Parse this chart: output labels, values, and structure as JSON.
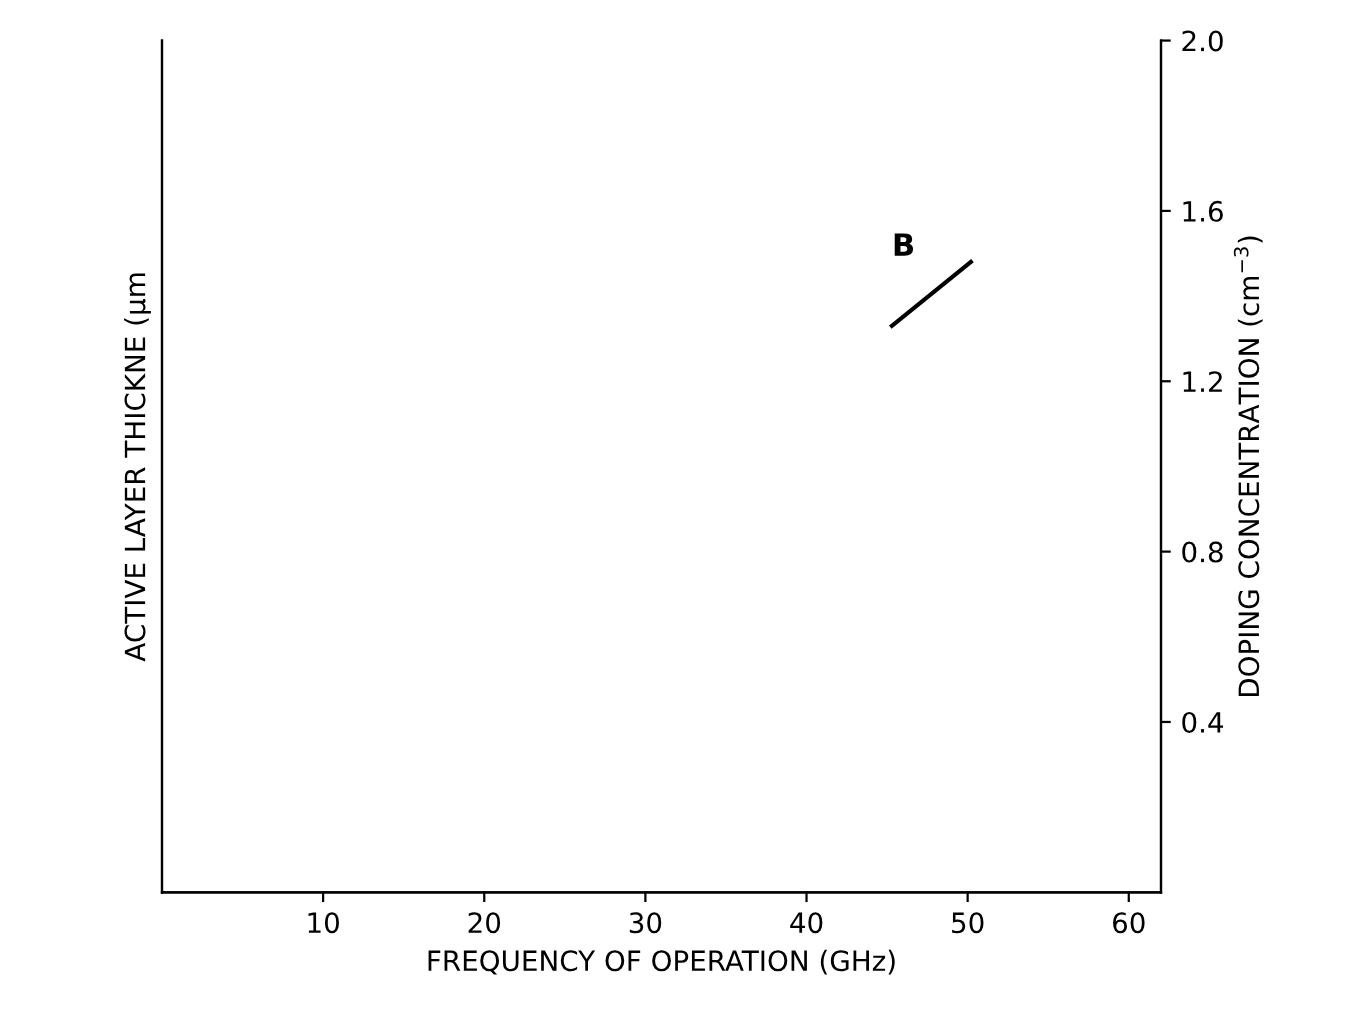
{
  "chart_data": {
    "type": "line",
    "xlabel": "FREQUENCY OF OPERATION (GHz)",
    "ylabel": "ACTIVE LAYER THICKNE (μm",
    "y2label": "DOPING CONCENTRATION (cm$^{−3}$)",
    "xlim": [
      0,
      62
    ],
    "xticks": [
      10,
      20,
      30,
      40,
      50,
      60
    ],
    "y2lim": [
      0,
      2.0
    ],
    "y2ticks": [
      {
        "value": 0.4,
        "label": "0.4"
      },
      {
        "value": 0.8,
        "label": "0.8"
      },
      {
        "value": 1.2,
        "label": "1.2"
      },
      {
        "value": 1.6,
        "label": "1.6"
      },
      {
        "value": 2.0,
        "label": "2.0"
      }
    ],
    "series": [
      {
        "name": "B",
        "color": "#000000",
        "axis": "y2",
        "x": [
          45.3,
          50.2
        ],
        "values": [
          1.33,
          1.48
        ]
      }
    ]
  }
}
